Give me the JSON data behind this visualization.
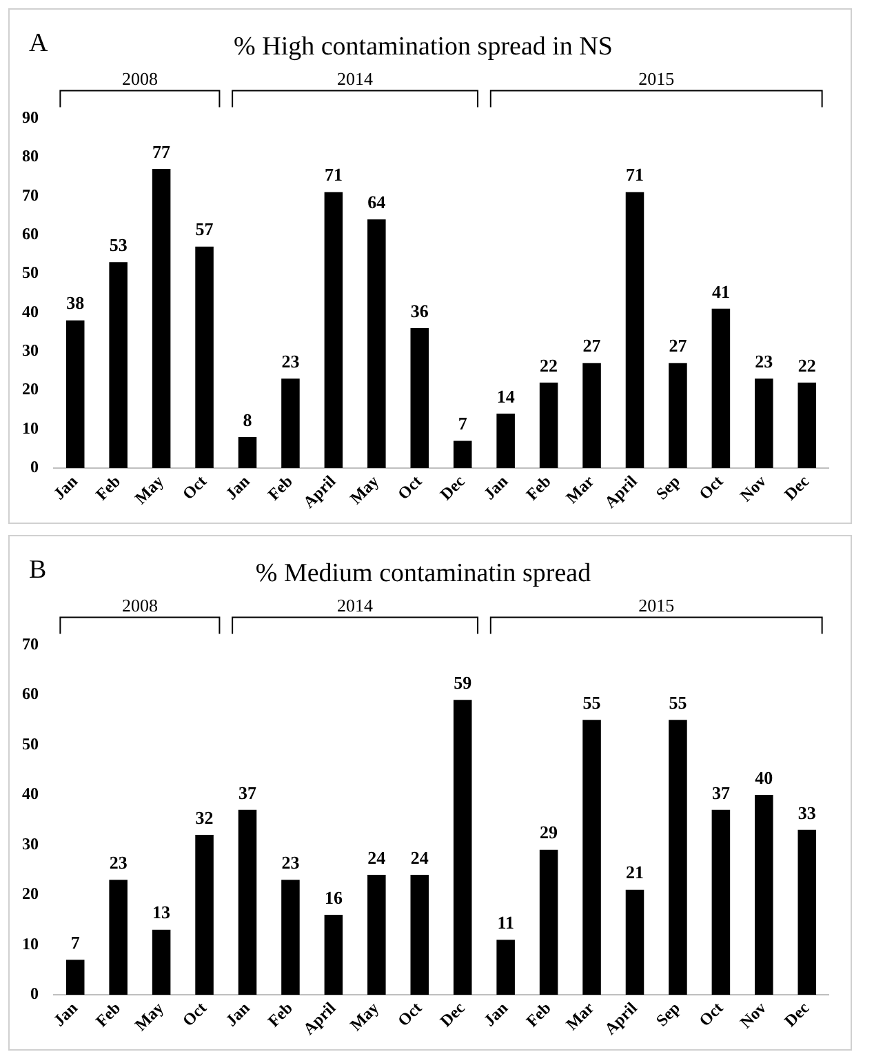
{
  "chart_data": [
    {
      "type": "bar",
      "title": "% High contamination spread in NS",
      "categories": [
        "Jan",
        "Feb",
        "May",
        "Oct",
        "Jan",
        "Feb",
        "April",
        "May",
        "Oct",
        "Dec",
        "Jan",
        "Feb",
        "Mar",
        "April",
        "Sep",
        "Oct",
        "Nov",
        "Dec"
      ],
      "values": [
        38,
        53,
        77,
        57,
        8,
        23,
        71,
        64,
        36,
        7,
        14,
        22,
        27,
        71,
        27,
        41,
        23,
        22
      ],
      "color": "#000000",
      "ylim": [
        0,
        90
      ],
      "yticks": [
        0,
        10,
        20,
        30,
        40,
        50,
        60,
        70,
        80,
        90
      ],
      "grid": false,
      "data_labels": true,
      "legend": false,
      "annotations": [
        "A",
        "2008",
        "2014",
        "2015"
      ]
    },
    {
      "type": "bar",
      "title": "% Medium contaminatin spread",
      "categories": [
        "Jan",
        "Feb",
        "May",
        "Oct",
        "Jan",
        "Feb",
        "April",
        "May",
        "Oct",
        "Dec",
        "Jan",
        "Feb",
        "Mar",
        "April",
        "Sep",
        "Oct",
        "Nov",
        "Dec"
      ],
      "values": [
        7,
        23,
        13,
        32,
        37,
        23,
        16,
        24,
        24,
        59,
        11,
        29,
        55,
        21,
        55,
        37,
        40,
        33
      ],
      "color": "#000000",
      "ylim": [
        0,
        70
      ],
      "yticks": [
        0,
        10,
        20,
        30,
        40,
        50,
        60,
        70
      ],
      "grid": false,
      "data_labels": true,
      "legend": false,
      "annotations": [
        "B",
        "2008",
        "2014",
        "2015"
      ]
    }
  ]
}
